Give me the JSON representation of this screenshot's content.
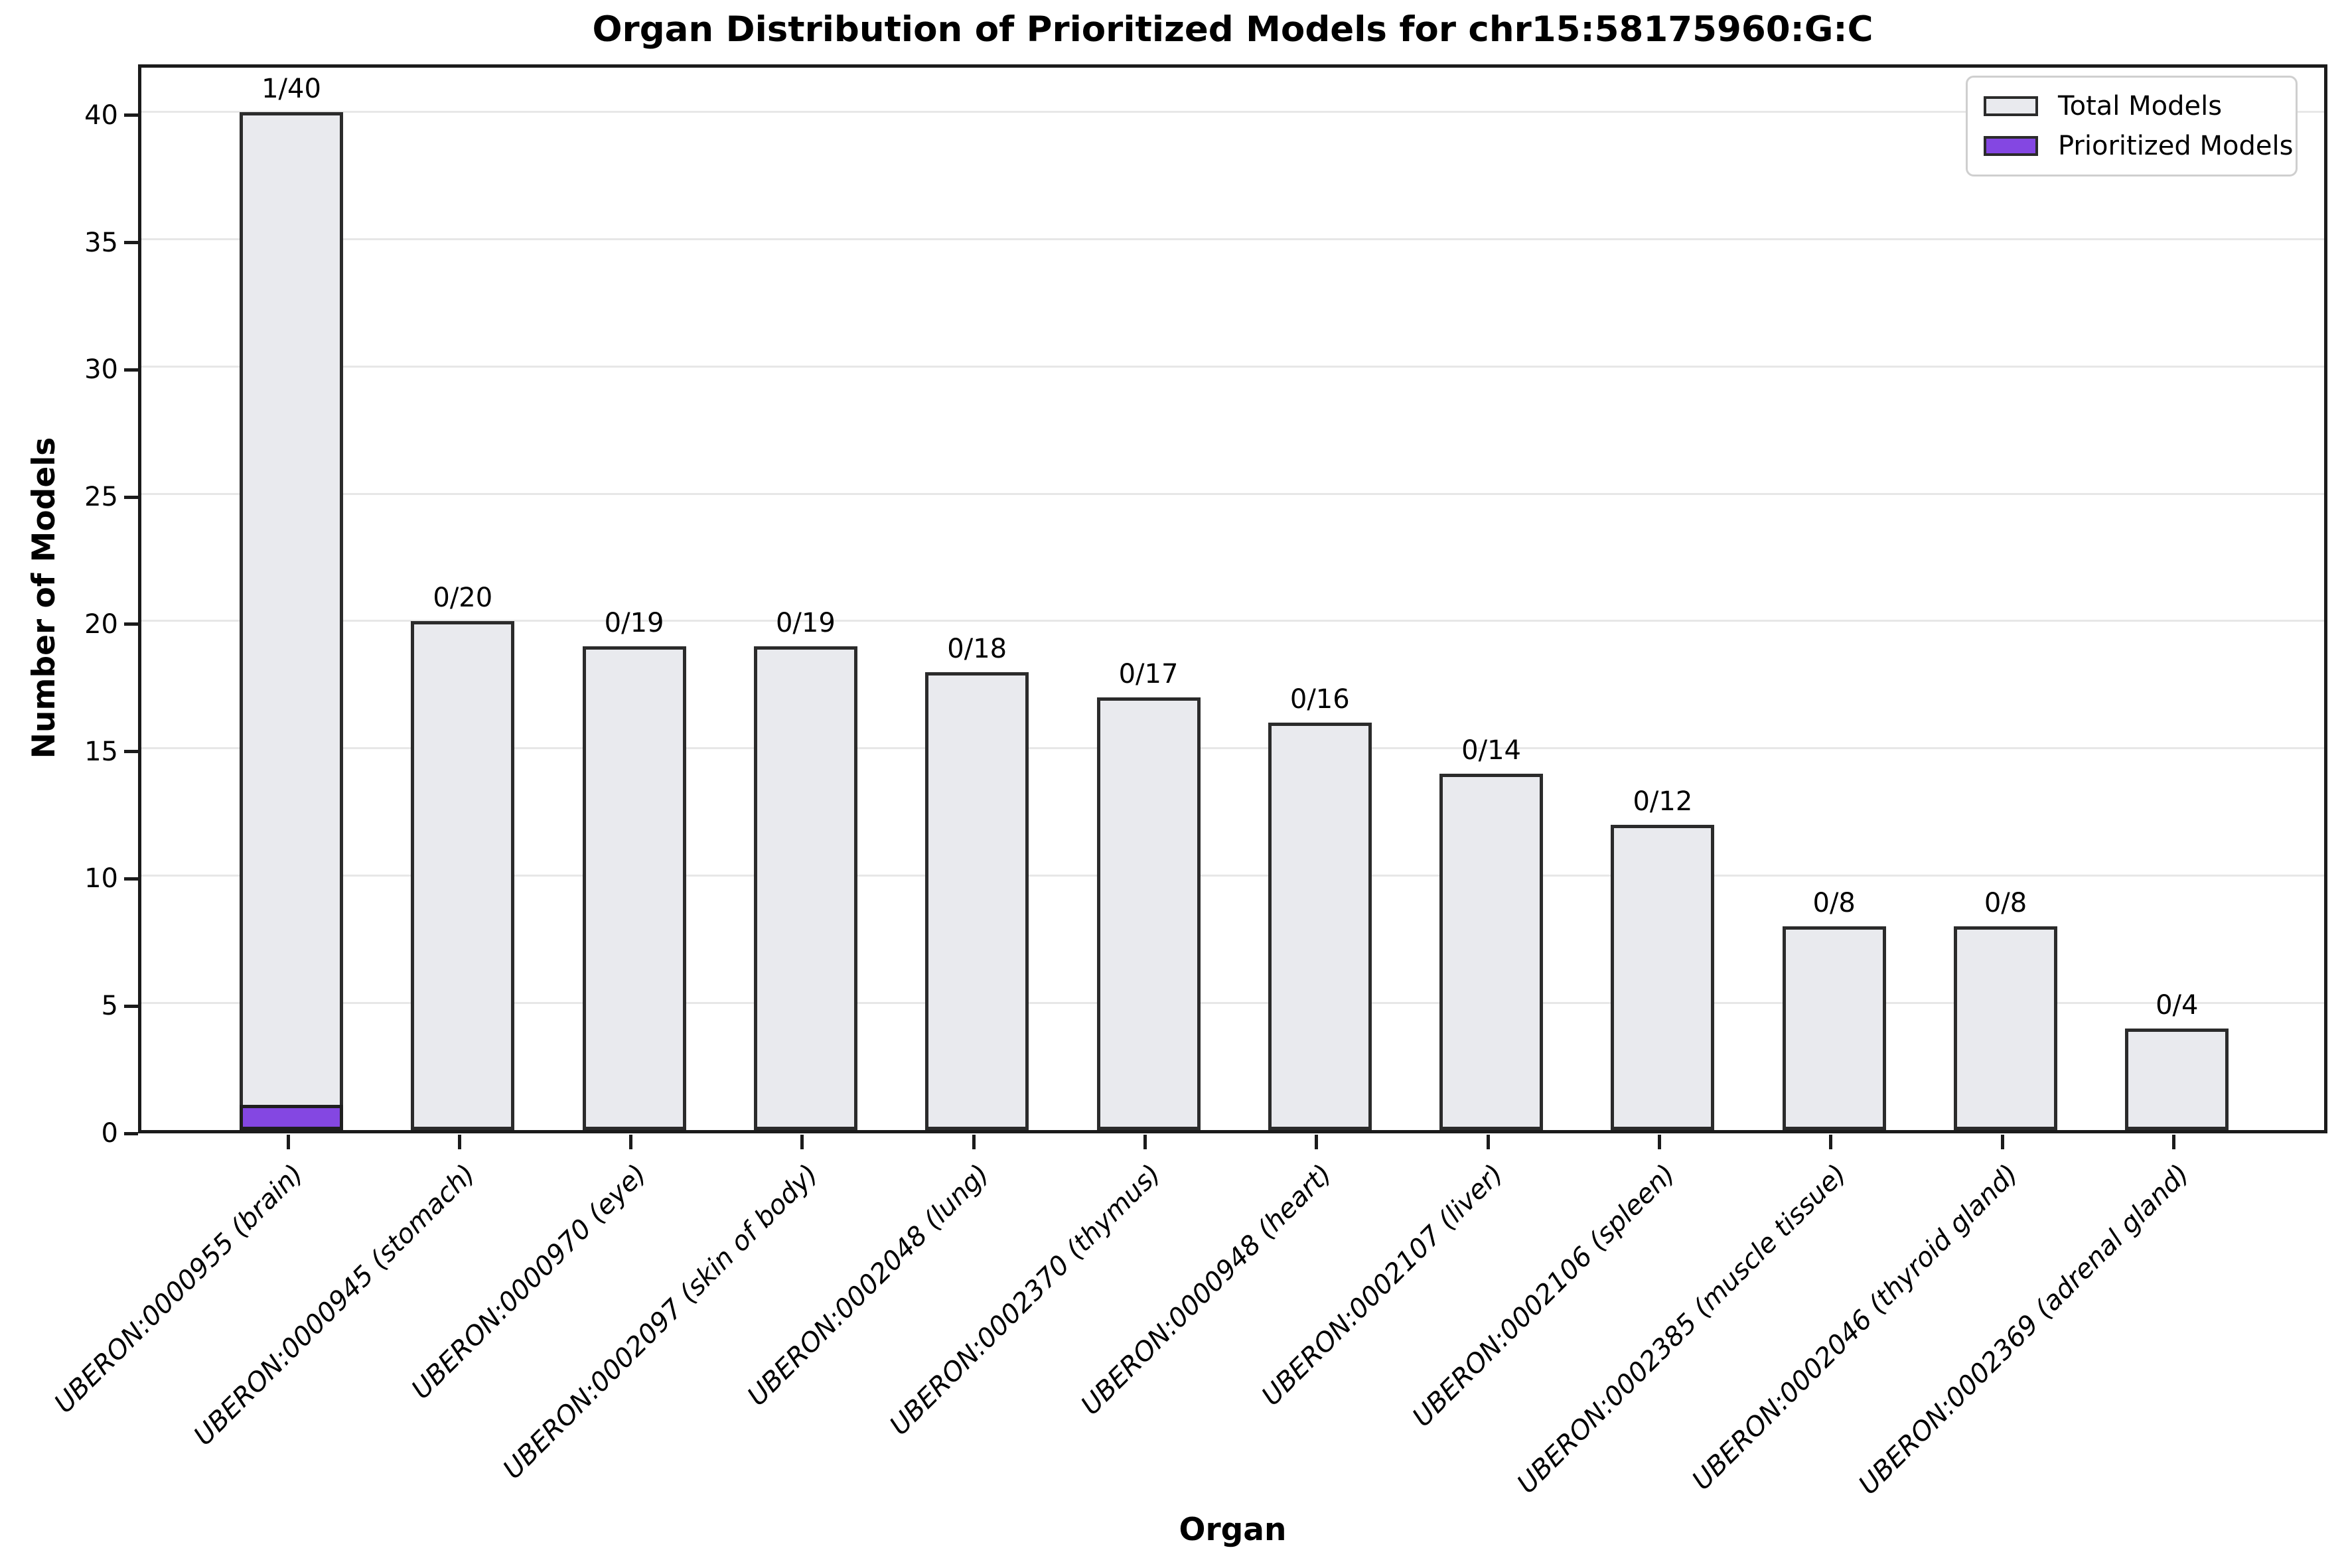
{
  "figure": {
    "title": "Organ Distribution of Prioritized Models for chr15:58175960:G:C",
    "xlabel": "Organ",
    "ylabel": "Number of Models"
  },
  "legend": {
    "items": [
      {
        "label": "Total Models",
        "color": "#e9eaee"
      },
      {
        "label": "Prioritized Models",
        "color": "#8447e2"
      }
    ]
  },
  "chart_data": {
    "type": "bar",
    "title": "Organ Distribution of Prioritized Models for chr15:58175960:G:C",
    "xlabel": "Organ",
    "ylabel": "Number of Models",
    "categories": [
      "UBERON:0000955 (brain)",
      "UBERON:0000945 (stomach)",
      "UBERON:0000970 (eye)",
      "UBERON:0002097 (skin of body)",
      "UBERON:0002048 (lung)",
      "UBERON:0002370 (thymus)",
      "UBERON:0000948 (heart)",
      "UBERON:0002107 (liver)",
      "UBERON:0002106 (spleen)",
      "UBERON:0002385 (muscle tissue)",
      "UBERON:0002046 (thyroid gland)",
      "UBERON:0002369 (adrenal gland)"
    ],
    "series": [
      {
        "name": "Total Models",
        "color": "#e9eaee",
        "values": [
          40,
          20,
          19,
          19,
          18,
          17,
          16,
          14,
          12,
          8,
          8,
          4
        ]
      },
      {
        "name": "Prioritized Models",
        "color": "#8447e2",
        "values": [
          1,
          0,
          0,
          0,
          0,
          0,
          0,
          0,
          0,
          0,
          0,
          0
        ]
      }
    ],
    "bar_labels": [
      "1/40",
      "0/20",
      "0/19",
      "0/19",
      "0/18",
      "0/17",
      "0/16",
      "0/14",
      "0/12",
      "0/8",
      "0/8",
      "0/4"
    ],
    "ylim": [
      0,
      42
    ],
    "yticks": [
      0,
      5,
      10,
      15,
      20,
      25,
      30,
      35,
      40
    ],
    "grid": "horizontal",
    "grid_color": "#e7e7e7",
    "bar_edge_color": "#2b2b2b",
    "legend_position": "upper right"
  }
}
